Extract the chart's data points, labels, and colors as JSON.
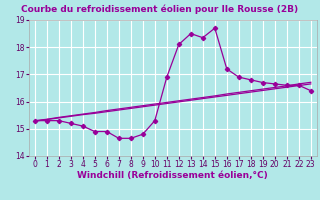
{
  "title": "Courbe du refroidissement éolien pour Ile Rousse (2B)",
  "xlabel": "Windchill (Refroidissement éolien,°C)",
  "background_color": "#b2e8e8",
  "grid_color": "#ffffff",
  "line_color": "#990099",
  "x": [
    0,
    1,
    2,
    3,
    4,
    5,
    6,
    7,
    8,
    9,
    10,
    11,
    12,
    13,
    14,
    15,
    16,
    17,
    18,
    19,
    20,
    21,
    22,
    23
  ],
  "y_main": [
    15.3,
    15.3,
    15.3,
    15.2,
    15.1,
    14.9,
    14.9,
    14.65,
    14.65,
    14.8,
    15.3,
    16.9,
    18.1,
    18.5,
    18.35,
    18.7,
    17.2,
    16.9,
    16.8,
    16.7,
    16.65,
    16.6,
    16.6,
    16.4
  ],
  "y_trend1": [
    15.3,
    15.35,
    15.42,
    15.48,
    15.54,
    15.6,
    15.67,
    15.73,
    15.79,
    15.85,
    15.91,
    15.97,
    16.03,
    16.09,
    16.15,
    16.21,
    16.28,
    16.34,
    16.4,
    16.46,
    16.52,
    16.58,
    16.65,
    16.71
  ],
  "y_trend2": [
    15.28,
    15.34,
    15.4,
    15.46,
    15.52,
    15.57,
    15.63,
    15.69,
    15.75,
    15.81,
    15.87,
    15.93,
    15.99,
    16.05,
    16.11,
    16.17,
    16.23,
    16.29,
    16.35,
    16.41,
    16.47,
    16.53,
    16.59,
    16.65
  ],
  "ylim": [
    14.0,
    19.0
  ],
  "xlim_min": -0.5,
  "xlim_max": 23.5,
  "yticks": [
    14,
    15,
    16,
    17,
    18,
    19
  ],
  "xticks": [
    0,
    1,
    2,
    3,
    4,
    5,
    6,
    7,
    8,
    9,
    10,
    11,
    12,
    13,
    14,
    15,
    16,
    17,
    18,
    19,
    20,
    21,
    22,
    23
  ],
  "title_fontsize": 6.5,
  "tick_fontsize": 5.5,
  "xlabel_fontsize": 6.5
}
